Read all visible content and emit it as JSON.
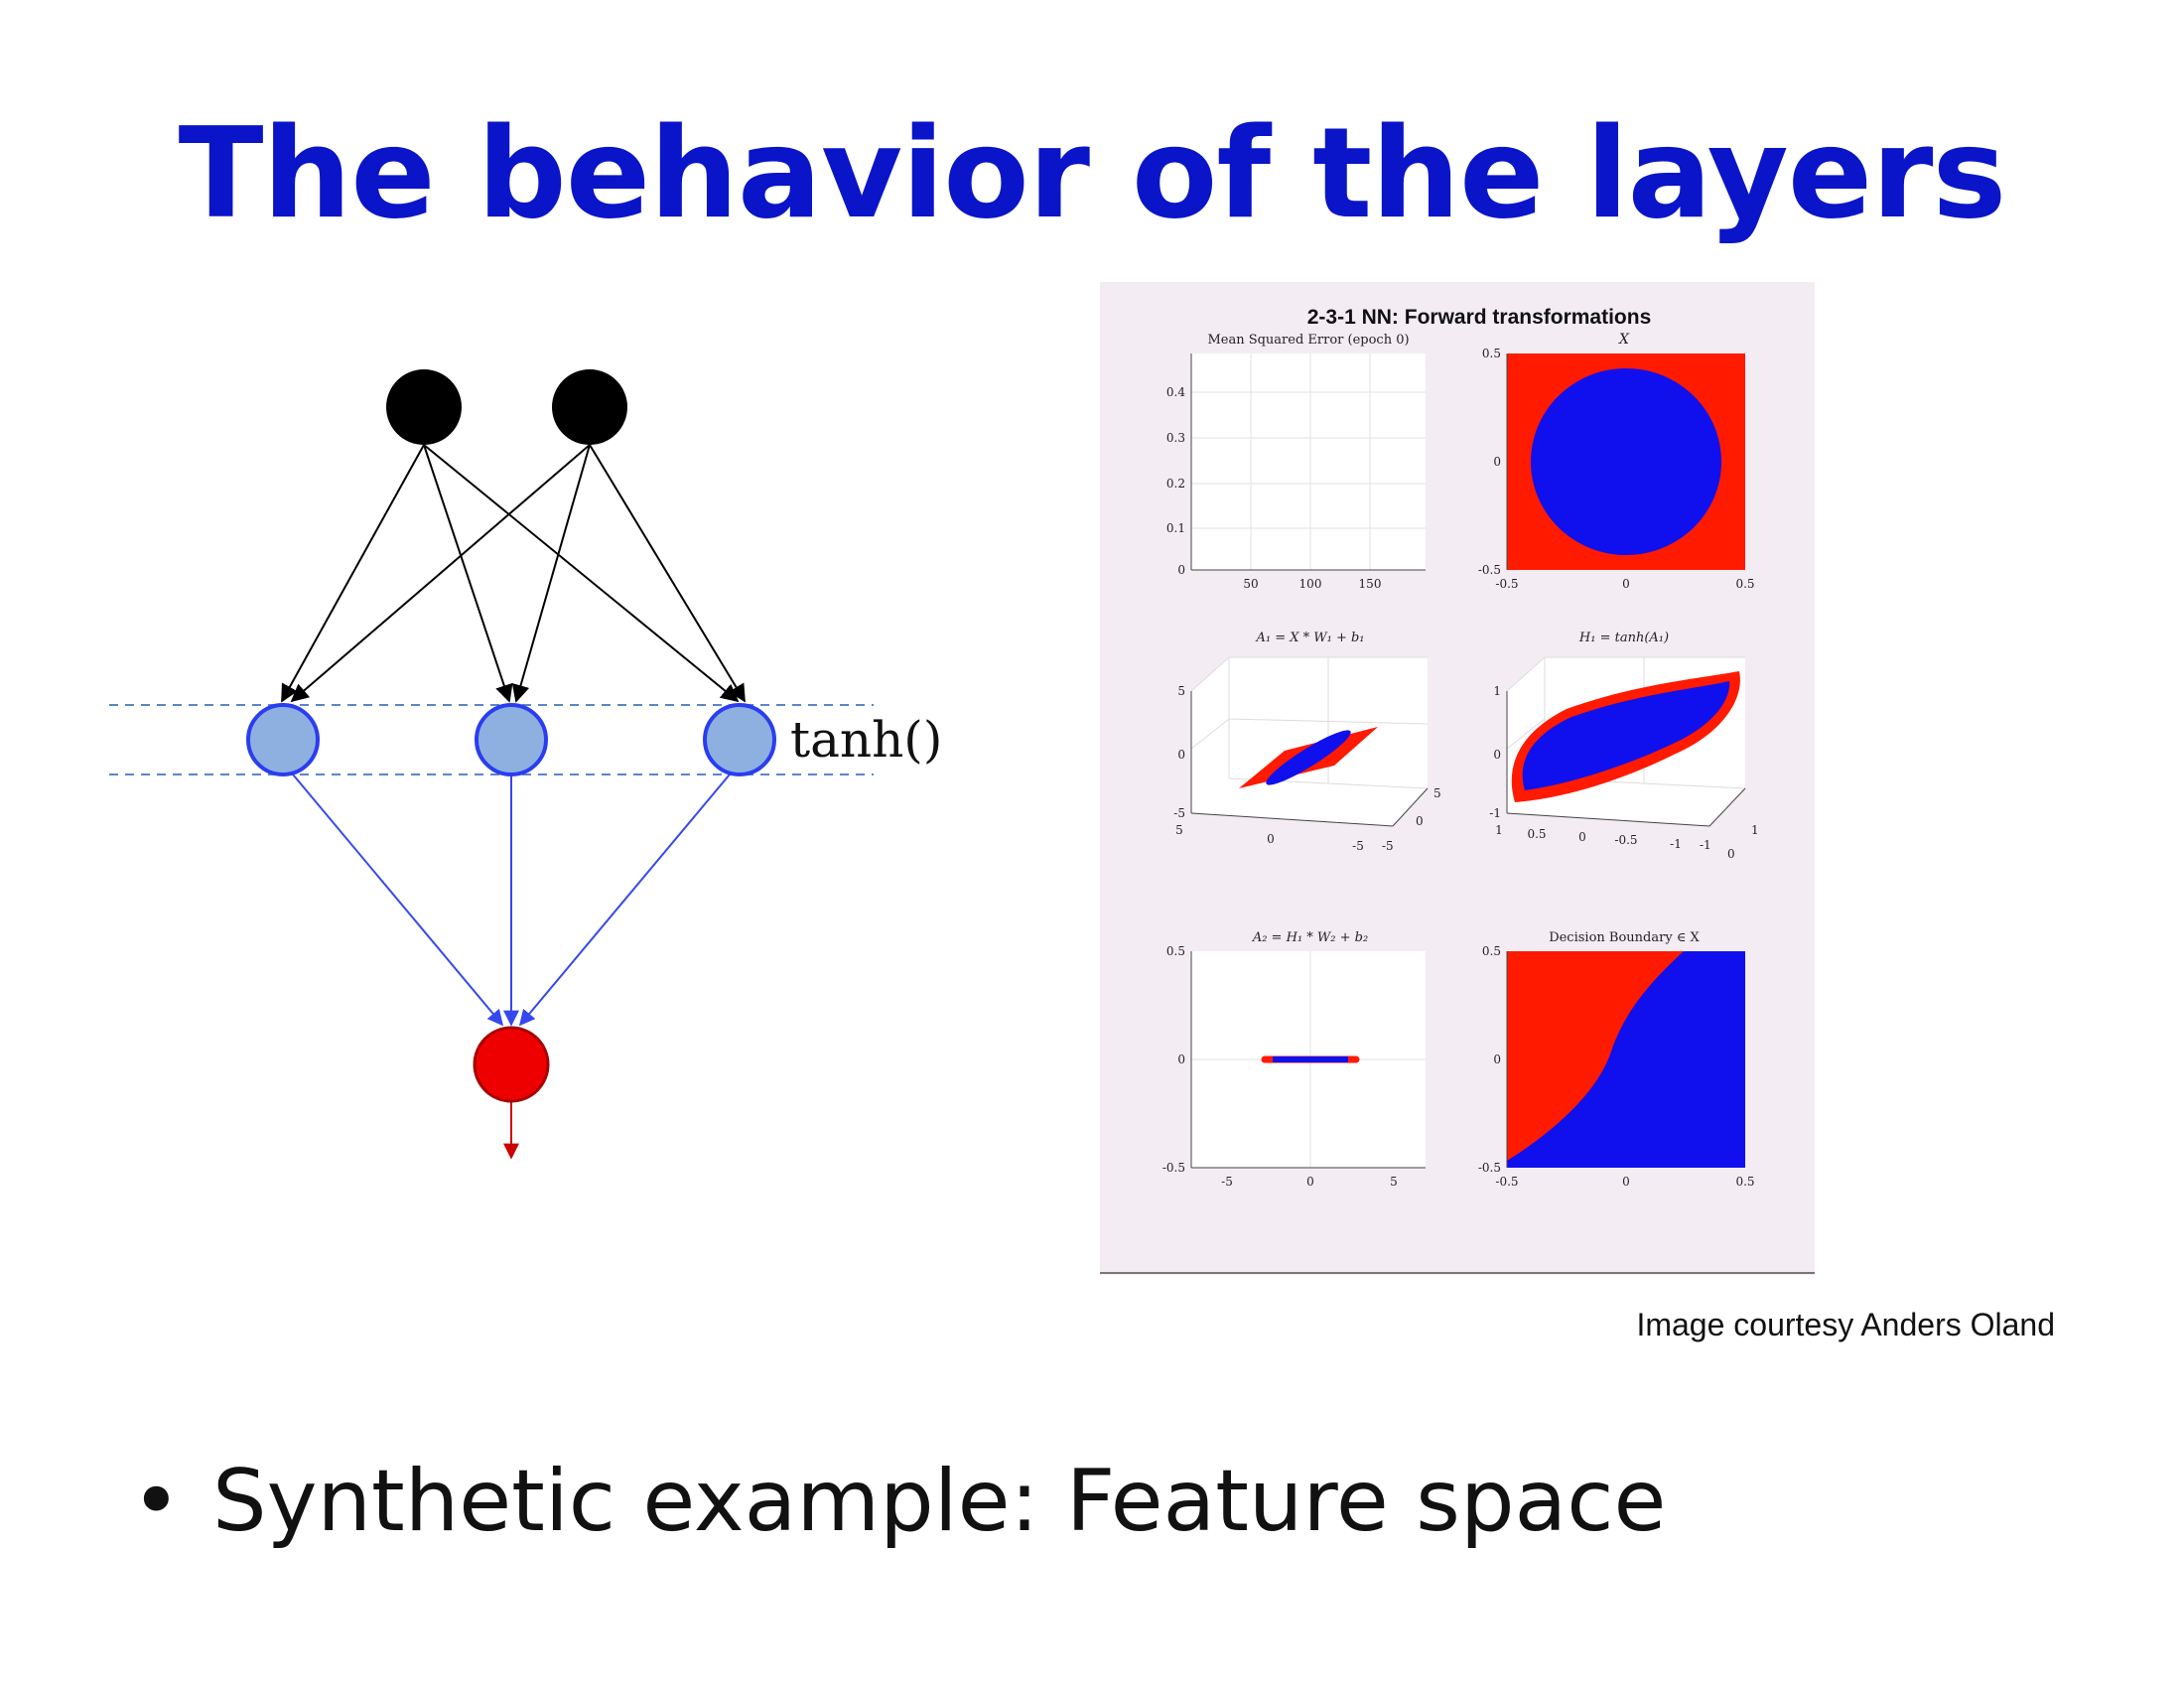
{
  "title": "The behavior of the layers",
  "network": {
    "activation_label": "tanh()",
    "inputs": 2,
    "hidden": 3,
    "outputs": 1,
    "colors": {
      "input": "#000000",
      "hidden_fill": "#8eb0e0",
      "hidden_stroke": "#2a3df0",
      "output": "#ee0000",
      "dashed": "#5b86c9",
      "blue_edges": "#3548ee"
    }
  },
  "figure": {
    "title": "2-3-1 NN: Forward transformations",
    "panels": [
      {
        "title": "Mean Squared Error (epoch 0)",
        "yticks": [
          "0.4",
          "0.3",
          "0.2",
          "0.1",
          "0"
        ],
        "xticks": [
          "50",
          "100",
          "150"
        ]
      },
      {
        "title": "X",
        "yticks": [
          "0.5",
          "0",
          "-0.5"
        ],
        "xticks": [
          "-0.5",
          "0",
          "0.5"
        ]
      },
      {
        "title": "A₁ = X * W₁ + b₁",
        "zticks": [
          "5",
          "0",
          "-5"
        ],
        "xticks": [
          "5",
          "0",
          "-5"
        ],
        "yticks": [
          "5",
          "0",
          "-5"
        ]
      },
      {
        "title": "H₁ = tanh(A₁)",
        "zticks": [
          "1",
          "0",
          "-1"
        ],
        "xticks": [
          "1",
          "0.5",
          "0",
          "-0.5",
          "-1"
        ],
        "yticks": [
          "1",
          "0",
          "-1"
        ]
      },
      {
        "title": "A₂ = H₁ * W₂ + b₂",
        "yticks": [
          "0.5",
          "0",
          "-0.5"
        ],
        "xticks": [
          "-5",
          "0",
          "5"
        ]
      },
      {
        "title": "Decision Boundary ∈ X",
        "yticks": [
          "0.5",
          "0",
          "-0.5"
        ],
        "xticks": [
          "-0.5",
          "0",
          "0.5"
        ]
      }
    ],
    "colors": {
      "class_a": "#ff1a00",
      "class_b": "#1010ee",
      "background": "#f3ecf3"
    }
  },
  "credit": "Image courtesy Anders Oland",
  "bullets": [
    "Synthetic example: Feature space"
  ]
}
